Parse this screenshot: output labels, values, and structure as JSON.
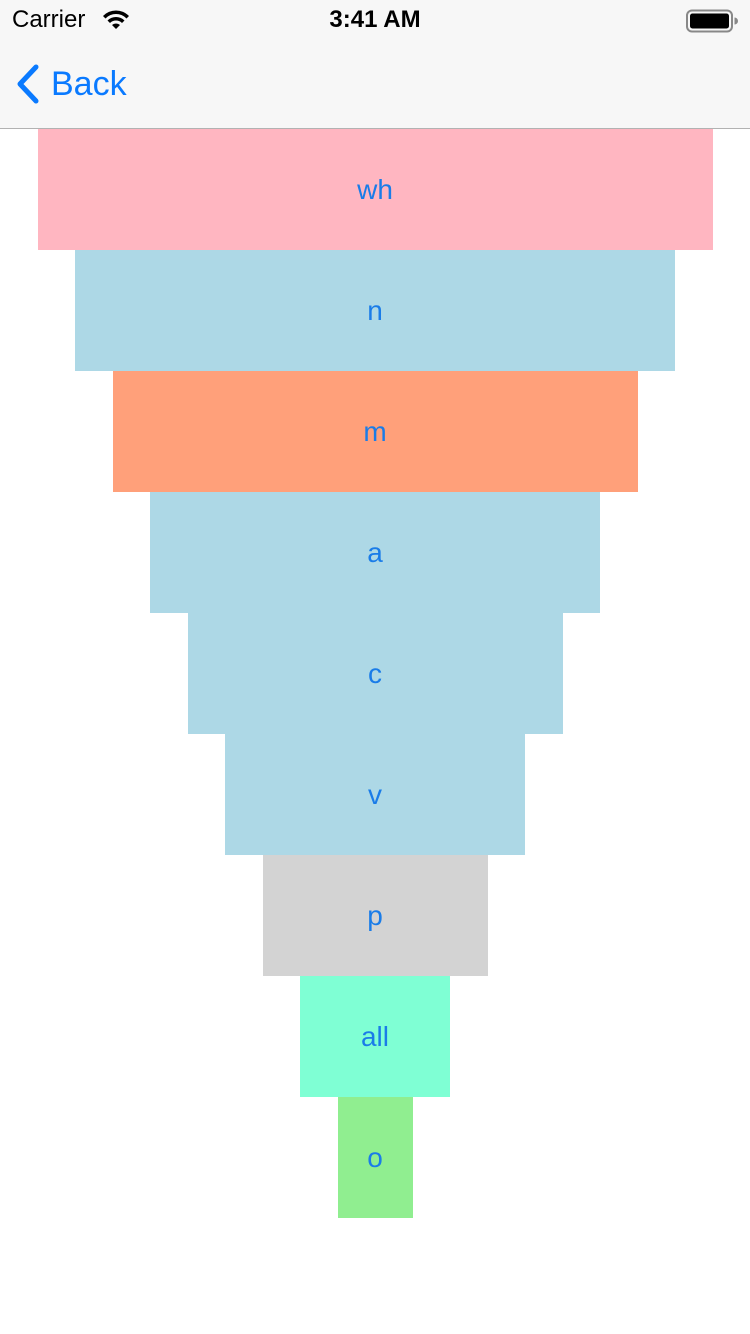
{
  "status_bar": {
    "carrier": "Carrier",
    "time": "3:41 AM",
    "wifi_icon": "wifi-icon",
    "battery_icon": "battery-full-icon"
  },
  "nav": {
    "back_label": "Back",
    "back_icon": "chevron-left-icon",
    "accent_color": "#0a7aff"
  },
  "funnel": {
    "label_color": "#1a7ce8",
    "steps": [
      {
        "label": "wh",
        "color": "#ffb6c1",
        "relative_width": 9
      },
      {
        "label": "n",
        "color": "#add8e6",
        "relative_width": 8
      },
      {
        "label": "m",
        "color": "#ffa07a",
        "relative_width": 7
      },
      {
        "label": "a",
        "color": "#add8e6",
        "relative_width": 6
      },
      {
        "label": "c",
        "color": "#add8e6",
        "relative_width": 5
      },
      {
        "label": "v",
        "color": "#add8e6",
        "relative_width": 4
      },
      {
        "label": "p",
        "color": "#d3d3d3",
        "relative_width": 3
      },
      {
        "label": "all",
        "color": "#7fffd4",
        "relative_width": 2
      },
      {
        "label": "o",
        "color": "#90ee90",
        "relative_width": 1
      }
    ]
  }
}
